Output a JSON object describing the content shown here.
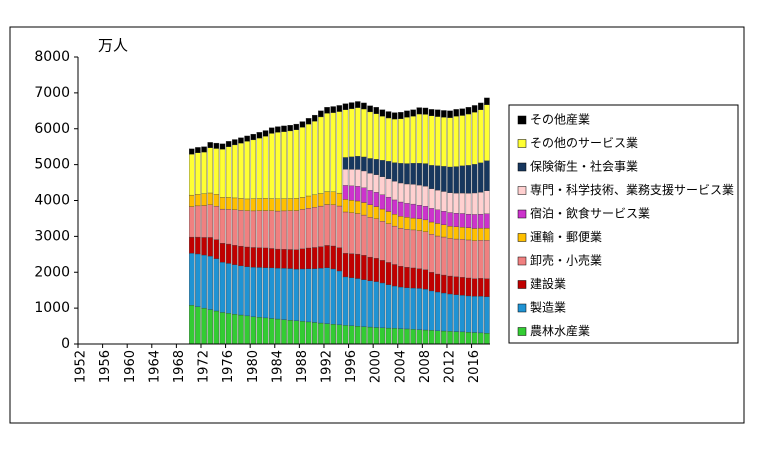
{
  "chart_data": {
    "type": "stacked_bar",
    "y_label": "万人",
    "x": [
      1970,
      1971,
      1972,
      1973,
      1974,
      1975,
      1976,
      1977,
      1978,
      1979,
      1980,
      1981,
      1982,
      1983,
      1984,
      1985,
      1986,
      1987,
      1988,
      1989,
      1990,
      1991,
      1992,
      1993,
      1994,
      1995,
      1996,
      1997,
      1998,
      1999,
      2000,
      2001,
      2002,
      2003,
      2004,
      2005,
      2006,
      2007,
      2008,
      2009,
      2010,
      2011,
      2012,
      2013,
      2014,
      2015,
      2016,
      2017,
      2018
    ],
    "xlim": [
      1951.5,
      2018.5
    ],
    "xticks": [
      1952,
      1956,
      1960,
      1964,
      1968,
      1972,
      1976,
      1980,
      1984,
      1988,
      1992,
      1996,
      2000,
      2004,
      2008,
      2012,
      2016
    ],
    "ylim": [
      0,
      8000
    ],
    "yticks": [
      0,
      1000,
      2000,
      3000,
      4000,
      5000,
      6000,
      7000,
      8000
    ],
    "grid": false,
    "legend": "right",
    "series": [
      {
        "name": "農林水産業",
        "color": "#33cc33",
        "values": [
          1080,
          1040,
          1000,
          960,
          920,
          880,
          856,
          832,
          808,
          784,
          760,
          744,
          728,
          712,
          696,
          680,
          664,
          648,
          632,
          616,
          600,
          584,
          568,
          552,
          536,
          520,
          508,
          496,
          484,
          472,
          460,
          452,
          444,
          436,
          428,
          420,
          410,
          400,
          390,
          380,
          370,
          362,
          354,
          346,
          338,
          330,
          320,
          310,
          300
        ]
      },
      {
        "name": "製造業",
        "color": "#1f93d3",
        "values": [
          1450,
          1470,
          1480,
          1490,
          1460,
          1400,
          1390,
          1380,
          1370,
          1370,
          1380,
          1390,
          1400,
          1410,
          1420,
          1430,
          1440,
          1440,
          1460,
          1480,
          1500,
          1530,
          1560,
          1540,
          1500,
          1350,
          1340,
          1330,
          1310,
          1290,
          1280,
          1250,
          1210,
          1180,
          1160,
          1150,
          1150,
          1150,
          1140,
          1100,
          1080,
          1060,
          1040,
          1030,
          1020,
          1010,
          1010,
          1020,
          1020
        ]
      },
      {
        "name": "建設業",
        "color": "#c00000",
        "values": [
          450,
          470,
          490,
          520,
          530,
          530,
          540,
          540,
          550,
          550,
          550,
          550,
          550,
          540,
          530,
          530,
          530,
          540,
          560,
          580,
          590,
          600,
          620,
          640,
          650,
          660,
          670,
          680,
          680,
          660,
          650,
          630,
          620,
          600,
          580,
          570,
          560,
          550,
          540,
          520,
          500,
          500,
          500,
          500,
          500,
          500,
          490,
          500,
          500
        ]
      },
      {
        "name": "卸売・小売業",
        "color": "#f08080",
        "values": [
          850,
          870,
          890,
          910,
          930,
          950,
          970,
          990,
          1000,
          1010,
          1020,
          1030,
          1040,
          1050,
          1060,
          1070,
          1080,
          1090,
          1100,
          1110,
          1120,
          1130,
          1140,
          1150,
          1160,
          1150,
          1140,
          1130,
          1120,
          1110,
          1100,
          1090,
          1080,
          1070,
          1060,
          1060,
          1060,
          1060,
          1060,
          1060,
          1060,
          1060,
          1050,
          1050,
          1060,
          1060,
          1060,
          1060,
          1070
        ]
      },
      {
        "name": "運輸・郵便業",
        "color": "#ffc000",
        "values": [
          320,
          320,
          330,
          330,
          330,
          330,
          330,
          330,
          330,
          330,
          340,
          340,
          340,
          340,
          340,
          340,
          340,
          340,
          340,
          340,
          350,
          350,
          360,
          360,
          360,
          350,
          350,
          350,
          350,
          350,
          340,
          340,
          340,
          330,
          330,
          330,
          330,
          330,
          330,
          340,
          350,
          340,
          340,
          340,
          340,
          340,
          340,
          340,
          340
        ]
      },
      {
        "name": "宿泊・飲食サービス業",
        "color": "#cc33cc",
        "values": [
          null,
          null,
          null,
          null,
          null,
          null,
          null,
          null,
          null,
          null,
          null,
          null,
          null,
          null,
          null,
          null,
          null,
          null,
          null,
          null,
          null,
          null,
          null,
          null,
          null,
          390,
          400,
          410,
          410,
          400,
          400,
          400,
          400,
          400,
          400,
          390,
          390,
          380,
          380,
          380,
          380,
          380,
          380,
          380,
          380,
          380,
          390,
          390,
          400
        ]
      },
      {
        "name": "専門・科学技術、業務支援サービス業",
        "color": "#ffd0d0",
        "values": [
          null,
          null,
          null,
          null,
          null,
          null,
          null,
          null,
          null,
          null,
          null,
          null,
          null,
          null,
          null,
          null,
          null,
          null,
          null,
          null,
          null,
          null,
          null,
          null,
          null,
          450,
          460,
          470,
          470,
          480,
          490,
          500,
          510,
          520,
          530,
          540,
          550,
          560,
          560,
          550,
          550,
          550,
          550,
          560,
          570,
          580,
          600,
          610,
          640
        ]
      },
      {
        "name": "保険衛生・社会事業",
        "color": "#17375e",
        "values": [
          null,
          null,
          null,
          null,
          null,
          null,
          null,
          null,
          null,
          null,
          null,
          null,
          null,
          null,
          null,
          null,
          null,
          null,
          null,
          null,
          null,
          null,
          null,
          null,
          null,
          330,
          350,
          370,
          390,
          410,
          430,
          460,
          490,
          520,
          550,
          570,
          590,
          610,
          630,
          650,
          680,
          700,
          720,
          740,
          760,
          780,
          800,
          820,
          840
        ]
      },
      {
        "name": "その他のサービス業",
        "color": "#ffff33",
        "values": [
          1140,
          1160,
          1160,
          1260,
          1280,
          1340,
          1414,
          1478,
          1542,
          1606,
          1640,
          1686,
          1732,
          1818,
          1854,
          1870,
          1886,
          1912,
          1948,
          2004,
          2050,
          2136,
          2182,
          2208,
          2274,
          1330,
          1342,
          1354,
          1336,
          1298,
          1270,
          1228,
          1206,
          1214,
          1242,
          1290,
          1310,
          1370,
          1370,
          1380,
          1370,
          1368,
          1376,
          1404,
          1402,
          1430,
          1450,
          1480,
          1560
        ]
      },
      {
        "name": "その他産業",
        "color": "#000000",
        "values": [
          150,
          150,
          150,
          150,
          150,
          150,
          150,
          150,
          150,
          150,
          160,
          160,
          160,
          160,
          160,
          160,
          160,
          160,
          160,
          160,
          170,
          170,
          170,
          170,
          170,
          170,
          170,
          170,
          170,
          170,
          180,
          180,
          180,
          180,
          180,
          180,
          180,
          180,
          180,
          180,
          190,
          190,
          190,
          190,
          190,
          190,
          190,
          190,
          190
        ]
      }
    ]
  }
}
